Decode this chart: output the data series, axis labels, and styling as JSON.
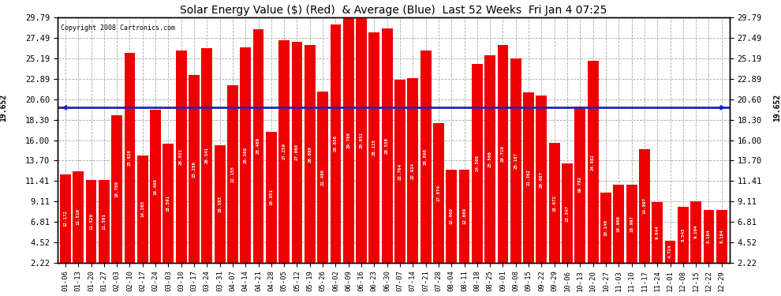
{
  "title": "Solar Energy Value ($) (Red)  & Average (Blue)  Last 52 Weeks  Fri Jan 4 07:25",
  "copyright": "Copyright 2008 Cartronics.com",
  "average_value": 19.652,
  "bar_color": "#ee0000",
  "avg_line_color": "#2222bb",
  "background_color": "#ffffff",
  "grid_color": "#aaaaaa",
  "categories": [
    "01-06",
    "01-13",
    "01-20",
    "01-27",
    "02-03",
    "02-10",
    "02-17",
    "02-24",
    "03-03",
    "03-10",
    "03-17",
    "03-24",
    "03-31",
    "04-07",
    "04-14",
    "04-21",
    "04-28",
    "05-05",
    "05-12",
    "05-19",
    "05-26",
    "06-02",
    "06-09",
    "06-16",
    "06-23",
    "06-30",
    "07-07",
    "07-14",
    "07-21",
    "07-28",
    "08-04",
    "08-11",
    "08-18",
    "08-25",
    "09-01",
    "09-08",
    "09-15",
    "09-22",
    "09-29",
    "10-06",
    "10-13",
    "10-20",
    "10-27",
    "11-03",
    "11-10",
    "11-17",
    "11-24",
    "12-01",
    "12-08",
    "12-15",
    "12-22",
    "12-29"
  ],
  "values": [
    12.172,
    12.51,
    11.529,
    11.561,
    18.78,
    25.828,
    14.263,
    19.4,
    15.591,
    26.031,
    23.286,
    26.341,
    15.383,
    22.155,
    26.388,
    28.48,
    16.951,
    27.259,
    27.06,
    26.66,
    21.48,
    29.036,
    29.786,
    29.831,
    28.115,
    28.538,
    22.764,
    22.934,
    26.09,
    17.874,
    12.668,
    12.669,
    24.596,
    25.568,
    26.71,
    25.187,
    21.362,
    20.987,
    15.672,
    13.347,
    19.782,
    24.882,
    10.14,
    10.96,
    10.997,
    14.997,
    9.044,
    4.724,
    8.543,
    9.164,
    8.164,
    8.164
  ],
  "yticks": [
    2.22,
    4.52,
    6.81,
    9.11,
    11.41,
    13.7,
    16.0,
    18.3,
    20.6,
    22.89,
    25.19,
    27.49,
    29.79
  ],
  "ymin": 2.22,
  "ymax": 29.79,
  "left_avg_label": "19.652",
  "right_avg_label": "19.652"
}
